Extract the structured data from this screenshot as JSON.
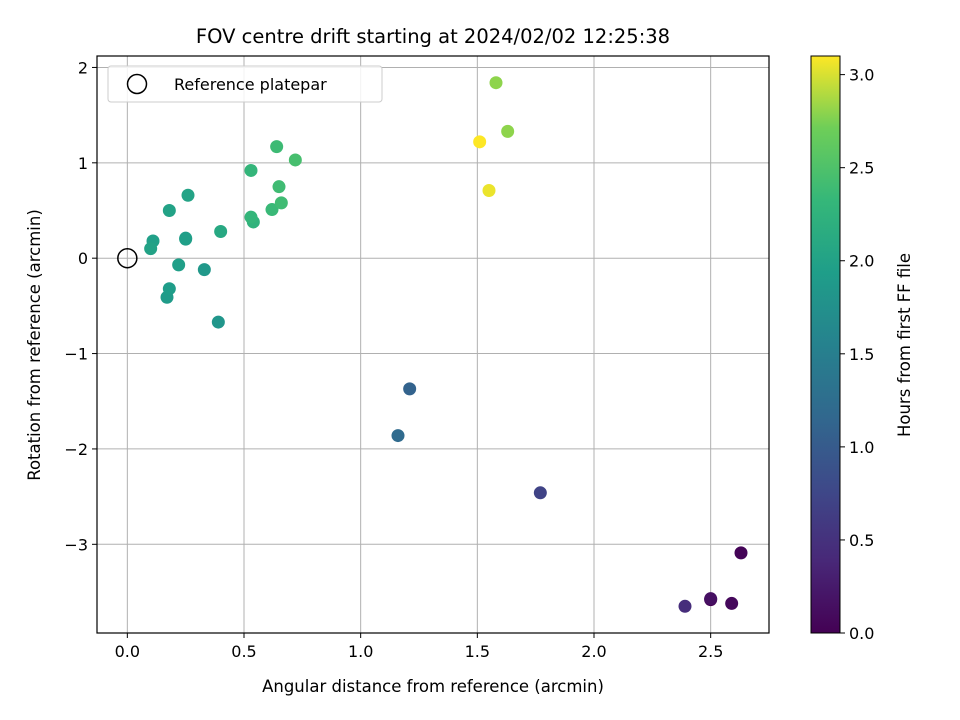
{
  "chart_data": {
    "type": "scatter",
    "title": "FOV centre drift starting at 2024/02/02 12:25:38",
    "xlabel": "Angular distance from reference (arcmin)",
    "ylabel": "Rotation from reference (arcmin)",
    "xlim": [
      -0.13,
      2.75
    ],
    "ylim": [
      -3.93,
      2.12
    ],
    "xticks": [
      0.0,
      0.5,
      1.0,
      1.5,
      2.0,
      2.5
    ],
    "xtick_labels": [
      "0.0",
      "0.5",
      "1.0",
      "1.5",
      "2.0",
      "2.5"
    ],
    "yticks": [
      -3,
      -2,
      -1,
      0,
      1,
      2
    ],
    "ytick_labels": [
      "−3",
      "−2",
      "−1",
      "0",
      "1",
      "2"
    ],
    "grid": true,
    "legend": {
      "placement": "upper-left",
      "entries": [
        {
          "label": "Reference platepar",
          "marker": "open-circle",
          "x": 0.0,
          "y": 0.0
        }
      ]
    },
    "colorbar": {
      "label": "Hours from first FF file",
      "colormap": "viridis",
      "range": [
        0.0,
        3.1
      ],
      "ticks": [
        0.0,
        0.5,
        1.0,
        1.5,
        2.0,
        2.5,
        3.0
      ],
      "tick_labels": [
        "0.0",
        "0.5",
        "1.0",
        "1.5",
        "2.0",
        "2.5",
        "3.0"
      ]
    },
    "series": [
      {
        "points": [
          {
            "x": 2.63,
            "y": -3.09,
            "hours": 0.03
          },
          {
            "x": 2.5,
            "y": -3.58,
            "hours": 0.0
          },
          {
            "x": 2.59,
            "y": -3.62,
            "hours": 0.07
          },
          {
            "x": 2.5,
            "y": -3.57,
            "hours": 0.15
          },
          {
            "x": 2.39,
            "y": -3.65,
            "hours": 0.45
          },
          {
            "x": 1.77,
            "y": -2.46,
            "hours": 0.7
          },
          {
            "x": 1.21,
            "y": -1.37,
            "hours": 1.1
          },
          {
            "x": 1.16,
            "y": -1.86,
            "hours": 1.2
          },
          {
            "x": 0.39,
            "y": -0.67,
            "hours": 1.82
          },
          {
            "x": 0.33,
            "y": -0.12,
            "hours": 1.85
          },
          {
            "x": 0.17,
            "y": -0.41,
            "hours": 1.9
          },
          {
            "x": 0.18,
            "y": -0.32,
            "hours": 1.93
          },
          {
            "x": 0.22,
            "y": -0.07,
            "hours": 1.95
          },
          {
            "x": 0.25,
            "y": 0.21,
            "hours": 1.92
          },
          {
            "x": 0.25,
            "y": 0.2,
            "hours": 1.95
          },
          {
            "x": 0.11,
            "y": 0.18,
            "hours": 1.97
          },
          {
            "x": 0.1,
            "y": 0.1,
            "hours": 2.0
          },
          {
            "x": 0.18,
            "y": 0.5,
            "hours": 2.0
          },
          {
            "x": 0.26,
            "y": 0.66,
            "hours": 2.02
          },
          {
            "x": 0.4,
            "y": 0.28,
            "hours": 2.1
          },
          {
            "x": 0.54,
            "y": 0.38,
            "hours": 2.25
          },
          {
            "x": 0.53,
            "y": 0.43,
            "hours": 2.3
          },
          {
            "x": 0.53,
            "y": 0.92,
            "hours": 2.3
          },
          {
            "x": 0.62,
            "y": 0.51,
            "hours": 2.35
          },
          {
            "x": 0.65,
            "y": 0.75,
            "hours": 2.4
          },
          {
            "x": 0.66,
            "y": 0.58,
            "hours": 2.4
          },
          {
            "x": 0.64,
            "y": 1.17,
            "hours": 2.38
          },
          {
            "x": 0.72,
            "y": 1.03,
            "hours": 2.45
          },
          {
            "x": 1.58,
            "y": 1.84,
            "hours": 2.8
          },
          {
            "x": 1.63,
            "y": 1.33,
            "hours": 2.8
          },
          {
            "x": 1.51,
            "y": 1.22,
            "hours": 3.1
          },
          {
            "x": 1.55,
            "y": 0.71,
            "hours": 3.05
          }
        ]
      }
    ]
  }
}
